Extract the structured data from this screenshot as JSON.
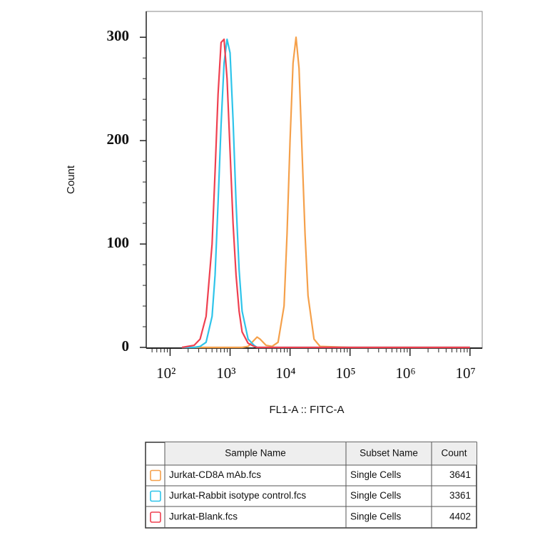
{
  "chart_data": {
    "type": "line",
    "x_label": "FL1-A :: FITC-A",
    "y_label": "Count",
    "x_log": true,
    "xlim": [
      40,
      16000000
    ],
    "xticks": [
      {
        "value": 100,
        "label": "10²"
      },
      {
        "value": 1000,
        "label": "10³"
      },
      {
        "value": 10000,
        "label": "10⁴"
      },
      {
        "value": 100000,
        "label": "10⁵"
      },
      {
        "value": 1000000,
        "label": "10⁶"
      },
      {
        "value": 10000000,
        "label": "10⁷"
      }
    ],
    "ylim": [
      0,
      325
    ],
    "yticks": [
      0,
      100,
      200,
      300
    ],
    "table_headers": [
      "Sample Name",
      "Subset Name",
      "Count"
    ],
    "x": [
      158,
      251,
      316,
      398,
      501,
      562,
      631,
      708,
      794,
      891,
      1000,
      1122,
      1259,
      1413,
      1585,
      1995,
      2512,
      2818,
      3162,
      3981,
      5012,
      6310,
      7943,
      8913,
      10000,
      11220,
      12589,
      14125,
      15849,
      17783,
      19953,
      25119,
      31623,
      100000,
      1000000,
      10000000
    ],
    "series": [
      {
        "name": "Jurkat-CD8A mAb.fcs",
        "subset": "Single Cells",
        "count": 3641,
        "color": "#f5a04a",
        "values": [
          0,
          0,
          0,
          0,
          0,
          0,
          0,
          0,
          0,
          0,
          0,
          0,
          0,
          0,
          0,
          1,
          7,
          10,
          8,
          2,
          1,
          5,
          40,
          110,
          200,
          275,
          300,
          270,
          190,
          110,
          50,
          8,
          1,
          0,
          0,
          0
        ]
      },
      {
        "name": "Jurkat-Rabbit isotype control.fcs",
        "subset": "Single Cells",
        "count": 3361,
        "color": "#2ec4ea",
        "values": [
          0,
          0,
          1,
          5,
          30,
          70,
          140,
          215,
          275,
          298,
          285,
          220,
          140,
          75,
          35,
          8,
          2,
          0,
          0,
          0,
          0,
          0,
          0,
          0,
          0,
          0,
          0,
          0,
          0,
          0,
          0,
          0,
          0,
          0,
          0,
          0
        ]
      },
      {
        "name": "Jurkat-Blank.fcs",
        "subset": "Single Cells",
        "count": 4402,
        "color": "#ef4050",
        "values": [
          0,
          2,
          8,
          30,
          100,
          170,
          245,
          295,
          298,
          260,
          190,
          120,
          70,
          35,
          15,
          4,
          1,
          0,
          0,
          0,
          0,
          0,
          0,
          0,
          0,
          0,
          0,
          0,
          0,
          0,
          0,
          0,
          0,
          0,
          0,
          0
        ]
      }
    ]
  }
}
